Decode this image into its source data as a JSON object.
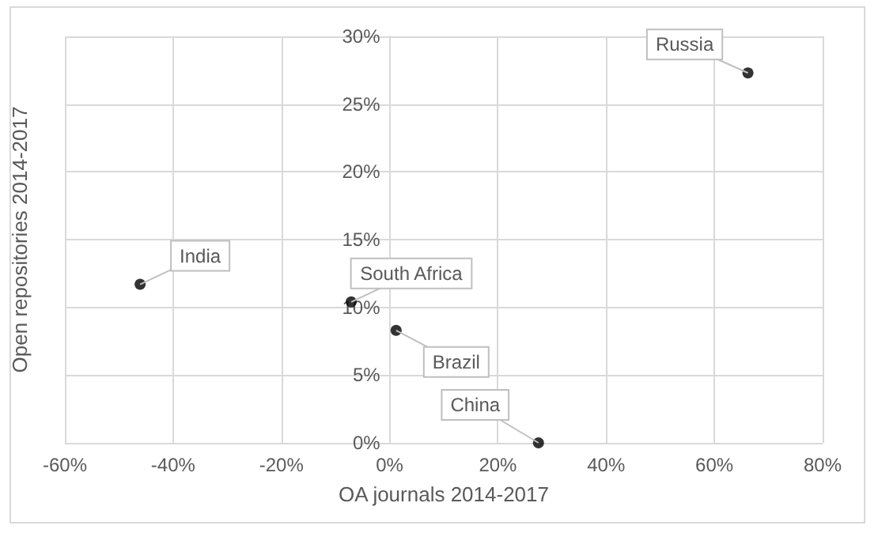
{
  "chart_data": {
    "type": "scatter",
    "xlabel": "OA journals 2014-2017",
    "ylabel": "Open repositories 2014-2017",
    "series": [
      {
        "color": "#000000",
        "x": [
          66.2,
          -46.1,
          -7.1,
          1.2,
          27.5
        ],
        "values": [
          27.3,
          11.7,
          10.4,
          8.3,
          0
        ]
      }
    ],
    "annotations": [
      {
        "text": "Russia",
        "x": 66.2,
        "y": 27.3
      },
      {
        "text": "India",
        "x": -46.1,
        "y": 11.7
      },
      {
        "text": "South Africa",
        "x": -7.1,
        "y": 10.4
      },
      {
        "text": "Brazil",
        "x": 1.2,
        "y": 8.3
      },
      {
        "text": "China",
        "x": 27.5,
        "y": 0
      }
    ],
    "xlim": [
      -60,
      80
    ],
    "xticks": [
      {
        "value": -60,
        "label": "-60%"
      },
      {
        "value": -40,
        "label": "-40%"
      },
      {
        "value": -20,
        "label": "-20%"
      },
      {
        "value": 0,
        "label": "0%"
      },
      {
        "value": 20,
        "label": "20%"
      },
      {
        "value": 40,
        "label": "40%"
      },
      {
        "value": 60,
        "label": "60%"
      },
      {
        "value": 80,
        "label": "80%"
      }
    ],
    "ylim": [
      0,
      30
    ],
    "yticks": [
      {
        "value": 0,
        "label": "0%"
      },
      {
        "value": 5,
        "label": "5%"
      },
      {
        "value": 10,
        "label": "10%"
      },
      {
        "value": 15,
        "label": "15%"
      },
      {
        "value": 20,
        "label": "20%"
      },
      {
        "value": 25,
        "label": "25%"
      },
      {
        "value": 30,
        "label": "30%"
      }
    ],
    "grid": true,
    "marker": "circle"
  }
}
